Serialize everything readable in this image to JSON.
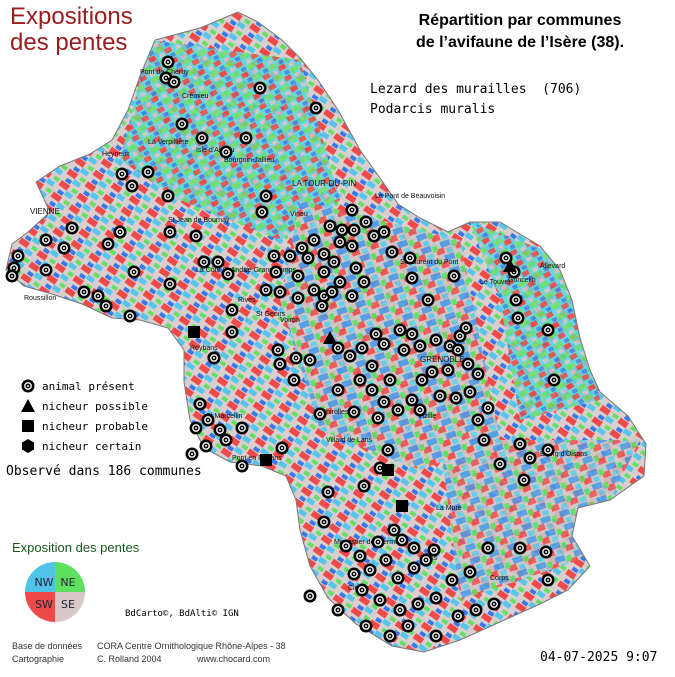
{
  "title": {
    "line1": "Expositions",
    "line2": "des pentes",
    "right_line1": "Répartition par communes",
    "right_line2": "de l’avifaune de l’Isère (38)."
  },
  "species": {
    "line1": "Lezard des murailles  (706)",
    "line2": "Podarcis muralis"
  },
  "legend": {
    "present": "animal présent",
    "possible": "nicheur possible",
    "probable": "nicheur probable",
    "certain": "nicheur certain"
  },
  "observed": "Observé dans 186 communes",
  "exposition": {
    "title": "Exposition des pentes",
    "nw": "NW",
    "ne": "NE",
    "sw": "SW",
    "se": "SE",
    "colors": {
      "nw": "#4fc3e8",
      "ne": "#5fe05f",
      "sw": "#ee4a4a",
      "se": "#d8c8c8"
    }
  },
  "credit": "BdCarto©, BdAlti© IGN",
  "footer": {
    "label1": "Base de données",
    "value1": "CORA Centre Ornithologique Rhône-Alpes - 38",
    "label2": "Cartographie",
    "value2": "C. Rolland 2004",
    "url": "www.chocard.com"
  },
  "date": "04-07-2025 9:07",
  "places": [
    "Pont de Chéruy",
    "Crémieu",
    "Heyrieux",
    "La Verpillière",
    "Isle d'Abeau",
    "Bourgoin-Jallieu",
    "LA TOUR-DU-PIN",
    "Le Pont de Beauvoisin",
    "VIENNE",
    "St Jean de Bournay",
    "Virieu",
    "St Laurent du Pont",
    "Allevard",
    "Le Touvet",
    "Roussillon",
    "La Côte St André",
    "Le Grand Lemps",
    "Rives",
    "St Geoirs",
    "Voiron",
    "Goncelin",
    "Roybans",
    "GRENOBLE",
    "St Marcellin",
    "Vizille",
    "Pont en Royans",
    "Villard de Lans",
    "Bourg d'Oisans",
    "Monestier de Clermont",
    "Mens",
    "Corps",
    "Clelles",
    "La Mure",
    "Echirolles"
  ],
  "records": {
    "present_count": 186,
    "possible_count": 2,
    "probable_count": 4,
    "certain_count": 0
  }
}
